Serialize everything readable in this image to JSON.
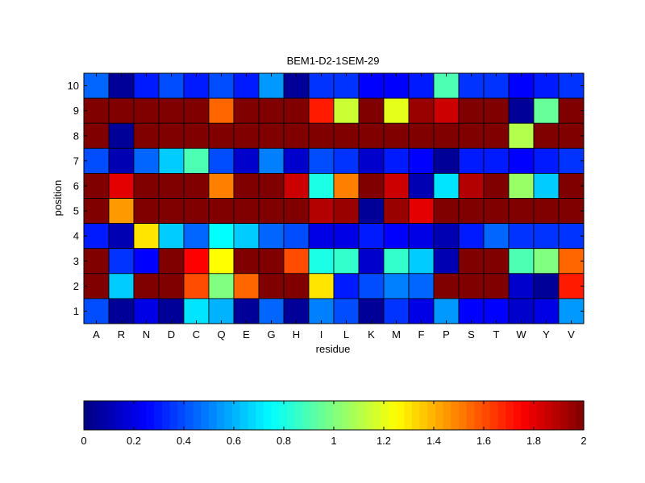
{
  "chart_data": {
    "type": "heatmap",
    "title": "BEM1-D2-1SEM-29",
    "xlabel": "residue",
    "ylabel": "position",
    "x_categories": [
      "A",
      "R",
      "N",
      "D",
      "C",
      "Q",
      "E",
      "G",
      "H",
      "I",
      "L",
      "K",
      "M",
      "F",
      "P",
      "S",
      "T",
      "W",
      "Y",
      "V"
    ],
    "y_categories": [
      "10",
      "9",
      "8",
      "7",
      "6",
      "5",
      "4",
      "3",
      "2",
      "1"
    ],
    "values": [
      [
        0.45,
        0.05,
        0.3,
        0.4,
        0.3,
        0.4,
        0.3,
        0.55,
        0.05,
        0.35,
        0.35,
        0.25,
        0.25,
        0.3,
        0.9,
        0.35,
        0.35,
        0.25,
        0.3,
        0.35
      ],
      [
        2.0,
        2.0,
        2.0,
        2.0,
        2.0,
        1.55,
        2.0,
        2.0,
        2.0,
        1.7,
        1.15,
        2.0,
        1.2,
        1.95,
        1.85,
        2.0,
        2.0,
        0.05,
        0.95,
        2.0
      ],
      [
        2.0,
        0.05,
        2.0,
        2.0,
        2.0,
        2.0,
        2.0,
        2.0,
        2.0,
        2.0,
        2.0,
        2.0,
        2.0,
        2.0,
        2.0,
        2.0,
        2.0,
        1.1,
        2.0,
        2.0
      ],
      [
        0.4,
        0.1,
        0.45,
        0.65,
        0.9,
        0.4,
        0.15,
        0.5,
        0.15,
        0.4,
        0.35,
        0.15,
        0.3,
        0.25,
        0.05,
        0.3,
        0.3,
        0.25,
        0.3,
        0.35
      ],
      [
        2.0,
        1.8,
        2.0,
        2.0,
        2.0,
        1.5,
        2.0,
        2.0,
        1.85,
        0.8,
        1.5,
        2.0,
        1.85,
        0.1,
        0.7,
        1.9,
        2.0,
        1.05,
        0.65,
        2.0
      ],
      [
        2.0,
        1.45,
        2.0,
        2.0,
        2.0,
        2.0,
        2.0,
        2.0,
        2.0,
        1.9,
        1.95,
        0.05,
        1.95,
        1.8,
        2.0,
        2.0,
        2.0,
        2.0,
        2.0,
        2.0
      ],
      [
        0.3,
        0.1,
        1.3,
        0.65,
        0.45,
        0.75,
        0.65,
        0.45,
        0.4,
        0.2,
        0.2,
        0.3,
        0.25,
        0.2,
        0.1,
        0.3,
        0.45,
        0.35,
        0.35,
        0.35
      ],
      [
        2.0,
        0.35,
        0.25,
        2.0,
        1.75,
        1.25,
        2.0,
        2.0,
        1.6,
        0.8,
        0.85,
        0.15,
        0.85,
        0.65,
        0.1,
        2.0,
        2.0,
        0.9,
        1.0,
        1.55
      ],
      [
        2.0,
        0.65,
        2.0,
        2.0,
        1.6,
        1.0,
        1.55,
        2.0,
        2.0,
        1.3,
        0.3,
        0.4,
        0.5,
        0.45,
        2.0,
        2.0,
        2.0,
        0.15,
        0.05,
        1.7
      ],
      [
        0.4,
        0.05,
        0.2,
        0.05,
        0.7,
        0.6,
        0.05,
        0.45,
        0.05,
        0.5,
        0.4,
        0.05,
        0.35,
        0.2,
        0.55,
        0.25,
        0.25,
        0.15,
        0.2,
        0.55
      ]
    ],
    "zlim": [
      0,
      2
    ],
    "colormap": "jet",
    "colorbar_ticks": [
      "0",
      "0.2",
      "0.4",
      "0.6",
      "0.8",
      "1",
      "1.2",
      "1.4",
      "1.6",
      "1.8",
      "2"
    ],
    "colorbar_location": "bottom",
    "grid": true
  }
}
